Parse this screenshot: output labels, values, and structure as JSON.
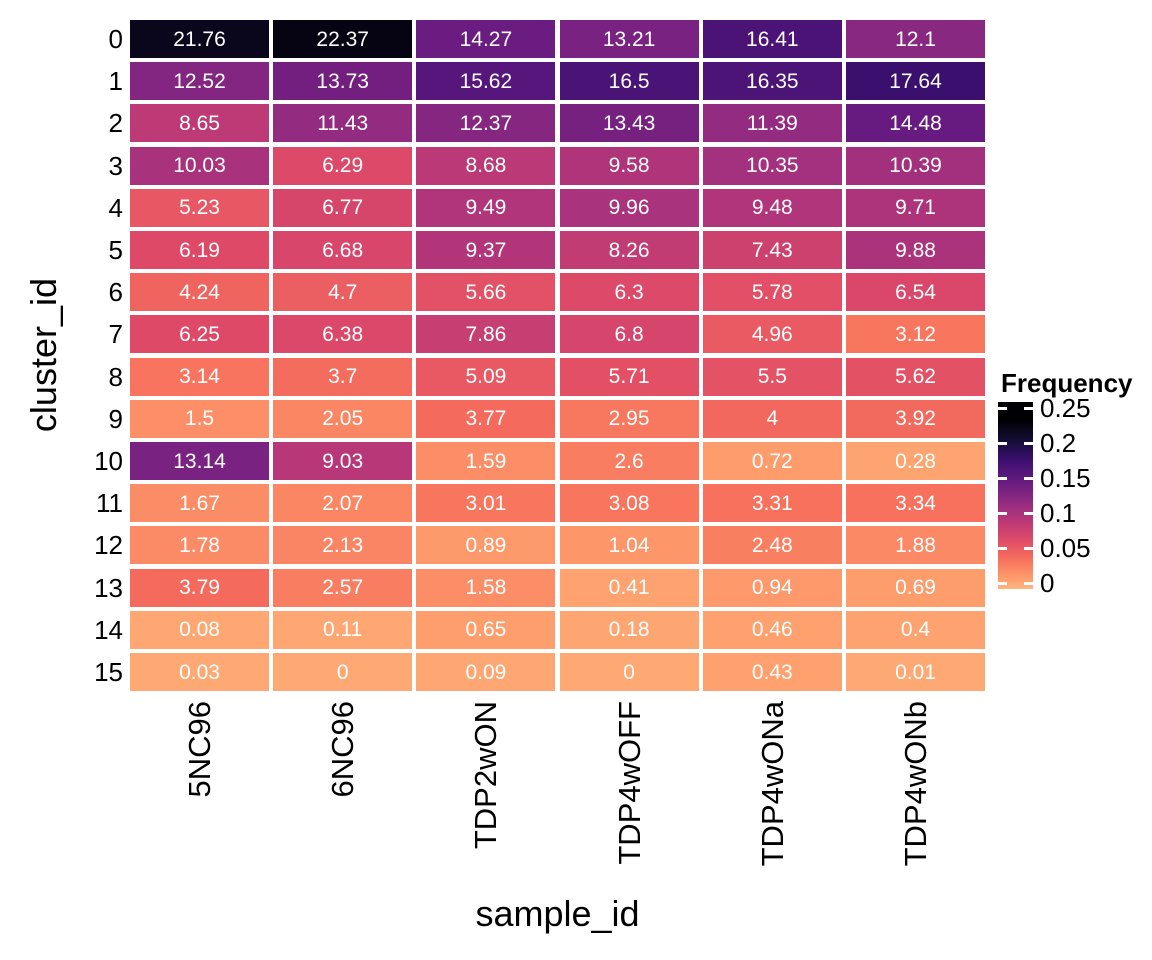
{
  "chart_data": {
    "type": "heatmap",
    "xlabel": "sample_id",
    "ylabel": "cluster_id",
    "categories_x": [
      "5NC96",
      "6NC96",
      "TDP2wON",
      "TDP4wOFF",
      "TDP4wONa",
      "TDP4wONb"
    ],
    "categories_y": [
      "0",
      "1",
      "2",
      "3",
      "4",
      "5",
      "6",
      "7",
      "8",
      "9",
      "10",
      "11",
      "12",
      "13",
      "14",
      "15"
    ],
    "values_percent": [
      [
        21.76,
        22.37,
        14.27,
        13.21,
        16.41,
        12.1
      ],
      [
        12.52,
        13.73,
        15.62,
        16.5,
        16.35,
        17.64
      ],
      [
        8.65,
        11.43,
        12.37,
        13.43,
        11.39,
        14.48
      ],
      [
        10.03,
        6.29,
        8.68,
        9.58,
        10.35,
        10.39
      ],
      [
        5.23,
        6.77,
        9.49,
        9.96,
        9.48,
        9.71
      ],
      [
        6.19,
        6.68,
        9.37,
        8.26,
        7.43,
        9.88
      ],
      [
        4.24,
        4.7,
        5.66,
        6.3,
        5.78,
        6.54
      ],
      [
        6.25,
        6.38,
        7.86,
        6.8,
        4.96,
        3.12
      ],
      [
        3.14,
        3.7,
        5.09,
        5.71,
        5.5,
        5.62
      ],
      [
        1.5,
        2.05,
        3.77,
        2.95,
        4,
        3.92
      ],
      [
        13.14,
        9.03,
        1.59,
        2.6,
        0.72,
        0.28
      ],
      [
        1.67,
        2.07,
        3.01,
        3.08,
        3.31,
        3.34
      ],
      [
        1.78,
        2.13,
        0.89,
        1.04,
        2.48,
        1.88
      ],
      [
        3.79,
        2.57,
        1.58,
        0.41,
        0.94,
        0.69
      ],
      [
        0.08,
        0.11,
        0.65,
        0.18,
        0.46,
        0.4
      ],
      [
        0.03,
        0,
        0.09,
        0,
        0.43,
        0.01
      ]
    ],
    "legend": {
      "title": "Frequency",
      "tick_labels": [
        "0.25",
        "0.2",
        "0.15",
        "0.1",
        "0.05",
        "0"
      ],
      "tick_values": [
        0.25,
        0.2,
        0.15,
        0.1,
        0.05,
        0
      ],
      "position": "right"
    },
    "colormap": "magma-reversed",
    "colormap_stops": [
      [
        0.0,
        "#000004"
      ],
      [
        0.1,
        "#140e36"
      ],
      [
        0.2,
        "#3b0f70"
      ],
      [
        0.3,
        "#641a80"
      ],
      [
        0.4,
        "#8c2981"
      ],
      [
        0.5,
        "#b73779"
      ],
      [
        0.6,
        "#de4968"
      ],
      [
        0.7,
        "#f7705c"
      ],
      [
        0.8,
        "#fe9f6d"
      ],
      [
        0.9,
        "#fecf92"
      ],
      [
        1.0,
        "#fcfdbf"
      ]
    ],
    "colors": {
      "background": "#ffffff",
      "cell_text": "#ffffff",
      "axis_text": "#000000",
      "grid_gap": "#ffffff",
      "legend_tick_marks": "#ffffff"
    },
    "grid": {
      "rows": 16,
      "cols": 6,
      "gap_visible": true
    }
  }
}
